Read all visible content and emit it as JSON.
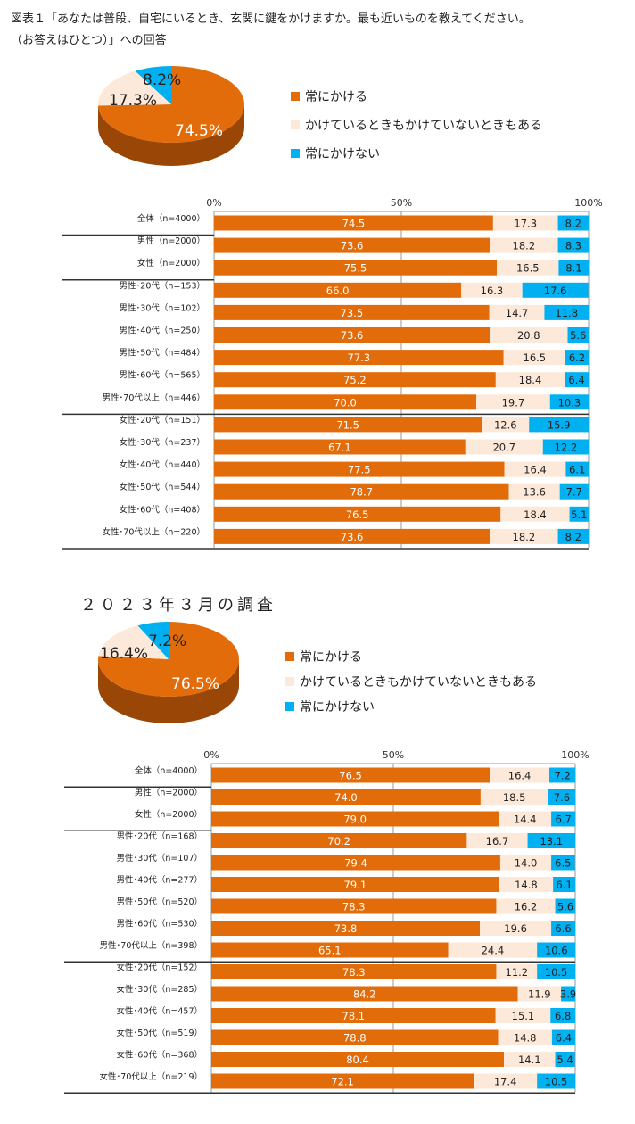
{
  "title": {
    "line1": "図表１「あなたは普段、自宅にいるとき、玄関に鍵をかけますか。最も近いものを教えてください。",
    "line2": "（お答えはひとつ）」への回答"
  },
  "subtitle": "２０２３年３月の調査",
  "legend": [
    {
      "label": "常にかける",
      "color": "#E36C0A"
    },
    {
      "label": "かけているときもかけていないときもある",
      "color": "#FDE9D9"
    },
    {
      "label": "常にかけない",
      "color": "#00B0F0"
    }
  ],
  "chart_data": [
    {
      "type": "pie",
      "name": "current-pie",
      "slices": [
        {
          "label": "常にかける",
          "value": 74.5,
          "text": "74.5%"
        },
        {
          "label": "かけているときもかけていないときもある",
          "value": 17.3,
          "text": "17.3%"
        },
        {
          "label": "常にかけない",
          "value": 8.2,
          "text": "8.2%"
        }
      ]
    },
    {
      "type": "bar",
      "name": "current-bar",
      "stacked": true,
      "orientation": "horizontal",
      "xlim": [
        0,
        100
      ],
      "ticks": [
        "0%",
        "50%",
        "100%"
      ],
      "categories": [
        "全体（n=4000）",
        "男性（n=2000）",
        "女性（n=2000）",
        "男性･20代（n=153）",
        "男性･30代（n=102）",
        "男性･40代（n=250）",
        "男性･50代（n=484）",
        "男性･60代（n=565）",
        "男性･70代以上（n=446）",
        "女性･20代（n=151）",
        "女性･30代（n=237）",
        "女性･40代（n=440）",
        "女性･50代（n=544）",
        "女性･60代（n=408）",
        "女性･70代以上（n=220）"
      ],
      "series": [
        {
          "name": "常にかける",
          "values": [
            74.5,
            73.6,
            75.5,
            66.0,
            73.5,
            73.6,
            77.3,
            75.2,
            70.0,
            71.5,
            67.1,
            77.5,
            78.7,
            76.5,
            73.6
          ]
        },
        {
          "name": "かけているときもかけていないときもある",
          "values": [
            17.3,
            18.2,
            16.5,
            16.3,
            14.7,
            20.8,
            16.5,
            18.4,
            19.7,
            12.6,
            20.7,
            16.4,
            13.6,
            18.4,
            18.2
          ]
        },
        {
          "name": "常にかけない",
          "values": [
            8.2,
            8.3,
            8.1,
            17.6,
            11.8,
            5.6,
            6.2,
            6.4,
            10.3,
            15.9,
            12.2,
            6.1,
            7.7,
            5.1,
            8.2
          ]
        }
      ]
    },
    {
      "type": "pie",
      "name": "2023-pie",
      "slices": [
        {
          "label": "常にかける",
          "value": 76.5,
          "text": "76.5%"
        },
        {
          "label": "かけているときもかけていないときもある",
          "value": 16.4,
          "text": "16.4%"
        },
        {
          "label": "常にかけない",
          "value": 7.2,
          "text": "7.2%"
        }
      ]
    },
    {
      "type": "bar",
      "name": "2023-bar",
      "stacked": true,
      "orientation": "horizontal",
      "xlim": [
        0,
        100
      ],
      "ticks": [
        "0%",
        "50%",
        "100%"
      ],
      "categories": [
        "全体（n=4000）",
        "男性（n=2000）",
        "女性（n=2000）",
        "男性･20代（n=168）",
        "男性･30代（n=107）",
        "男性･40代（n=277）",
        "男性･50代（n=520）",
        "男性･60代（n=530）",
        "男性･70代以上（n=398）",
        "女性･20代（n=152）",
        "女性･30代（n=285）",
        "女性･40代（n=457）",
        "女性･50代（n=519）",
        "女性･60代（n=368）",
        "女性･70代以上（n=219）"
      ],
      "series": [
        {
          "name": "常にかける",
          "values": [
            76.5,
            74.0,
            79.0,
            70.2,
            79.4,
            79.1,
            78.3,
            73.8,
            65.1,
            78.3,
            84.2,
            78.1,
            78.8,
            80.4,
            72.1
          ]
        },
        {
          "name": "かけているときもかけていないときもある",
          "values": [
            16.4,
            18.5,
            14.4,
            16.7,
            14.0,
            14.8,
            16.2,
            19.6,
            24.4,
            11.2,
            11.9,
            15.1,
            14.8,
            14.1,
            17.4
          ]
        },
        {
          "name": "常にかけない",
          "values": [
            7.2,
            7.6,
            6.7,
            13.1,
            6.5,
            6.1,
            5.6,
            6.6,
            10.6,
            10.5,
            3.9,
            6.8,
            6.4,
            5.4,
            10.5
          ]
        }
      ]
    }
  ]
}
